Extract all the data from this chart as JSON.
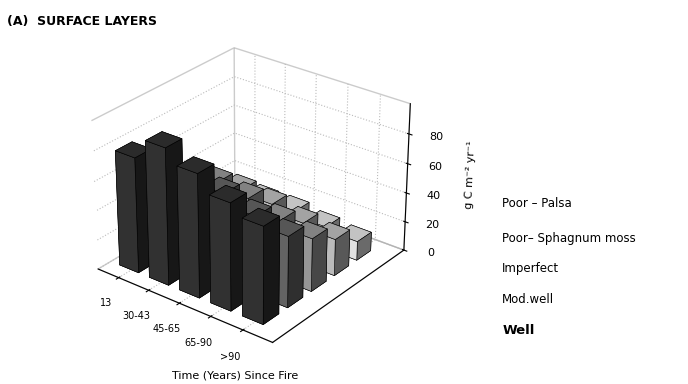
{
  "title": "(A)  SURFACE LAYERS",
  "ylabel": "g C m⁻² yr⁻¹",
  "xlabel_bottom": "Time (Years) Since Fire",
  "time_labels": [
    "13",
    "30-43",
    "45-65",
    "65-90",
    ">90"
  ],
  "drainage_labels": [
    "Well",
    "Mod.well",
    "Imperfect",
    "Poor– Sphagnum moss",
    "Poor – Palsa"
  ],
  "values": [
    [
      15,
      18,
      18,
      15,
      13
    ],
    [
      28,
      35,
      33,
      28,
      25
    ],
    [
      42,
      50,
      47,
      40,
      36
    ],
    [
      55,
      63,
      60,
      53,
      48
    ],
    [
      78,
      92,
      83,
      72,
      65
    ]
  ],
  "bar_colors": [
    "#ffffff",
    "#d4d4d4",
    "#aaaaaa",
    "#707070",
    "#383838"
  ],
  "bar_edge_color": "#000000",
  "ylim": [
    0,
    100
  ],
  "yticks": [
    0,
    20,
    40,
    60,
    80
  ],
  "figsize": [
    6.88,
    3.84
  ],
  "dpi": 100,
  "background_color": "#ffffff"
}
